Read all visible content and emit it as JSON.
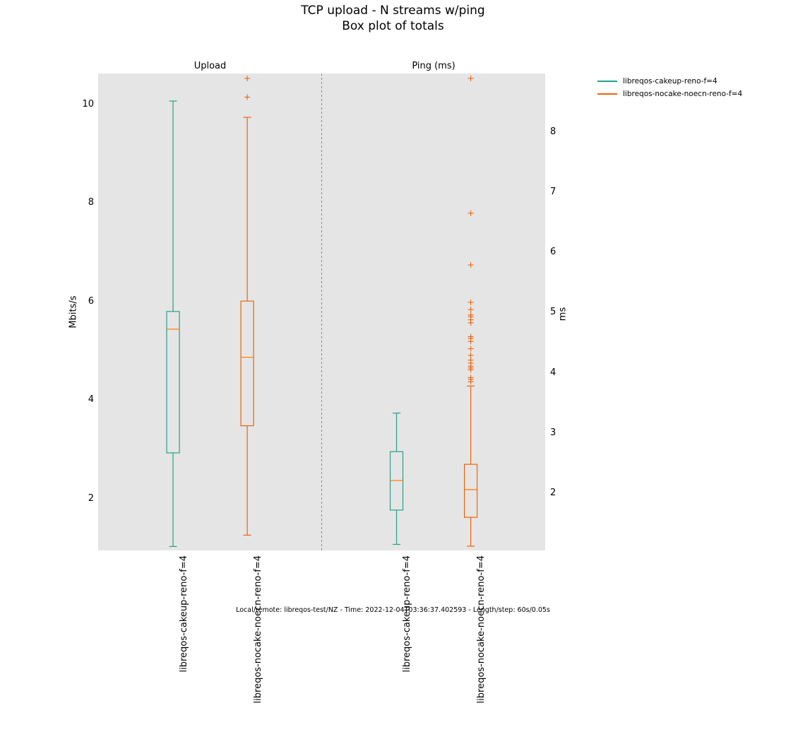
{
  "title": {
    "line1": "TCP upload - N streams w/ping",
    "line2": "Box plot of totals"
  },
  "legend": {
    "items": [
      {
        "label": "libreqos-cakeup-reno-f=4",
        "color": "#2aa189"
      },
      {
        "label": "libreqos-nocake-noecn-reno-f=4",
        "color": "#e8650e"
      }
    ]
  },
  "footer": "Local/remote: libreqos-test/NZ - Time: 2022-12-04T03:36:37.402593 - Length/step: 60s/0.05s",
  "chart_data": {
    "type": "boxplot",
    "title": "TCP upload - N streams w/ping",
    "subtitle": "Box plot of totals",
    "background_color": "#e5e5e5",
    "median_color": "#ff7f0e",
    "divider_color": "#808080",
    "legend_position": "top-right",
    "grid": false,
    "panels": [
      {
        "title": "Upload",
        "ylabel": "Mbits/s",
        "axis_side": "left",
        "yticks": [
          2,
          4,
          6,
          8,
          10
        ],
        "ylim": [
          0.95,
          10.63
        ],
        "boxes": [
          {
            "name": "libreqos-cakeup-reno-f=4",
            "color": "#2aa189",
            "whisker_low": 1.03,
            "q1": 2.93,
            "median": 5.44,
            "q3": 5.8,
            "whisker_high": 10.07,
            "fliers": []
          },
          {
            "name": "libreqos-nocake-noecn-reno-f=4",
            "color": "#e8650e",
            "whisker_low": 1.26,
            "q1": 3.48,
            "median": 4.87,
            "q3": 6.01,
            "whisker_high": 9.74,
            "fliers": [
              10.15,
              10.53
            ]
          }
        ]
      },
      {
        "title": "Ping (ms)",
        "ylabel": "ms",
        "axis_side": "right",
        "yticks": [
          2,
          3,
          4,
          5,
          6,
          7,
          8
        ],
        "ylim": [
          1.05,
          8.97
        ],
        "boxes": [
          {
            "name": "libreqos-cakeup-reno-f=4",
            "color": "#2aa189",
            "whisker_low": 1.15,
            "q1": 1.72,
            "median": 2.21,
            "q3": 2.69,
            "whisker_high": 3.33,
            "fliers": []
          },
          {
            "name": "libreqos-nocake-noecn-reno-f=4",
            "color": "#e8650e",
            "whisker_low": 1.12,
            "q1": 1.6,
            "median": 2.06,
            "q3": 2.48,
            "whisker_high": 3.78,
            "fliers": [
              3.85,
              3.89,
              3.92,
              4.05,
              4.08,
              4.11,
              4.16,
              4.21,
              4.29,
              4.4,
              4.52,
              4.57,
              4.6,
              4.83,
              4.88,
              4.93,
              4.96,
              5.05,
              5.17,
              5.79,
              6.65,
              8.89
            ]
          }
        ]
      }
    ],
    "xtick_labels": [
      "libreqos-cakeup-reno-f=4",
      "libreqos-nocake-noecn-reno-f=4",
      "libreqos-cakeup-reno-f=4",
      "libreqos-nocake-noecn-reno-f=4"
    ]
  }
}
